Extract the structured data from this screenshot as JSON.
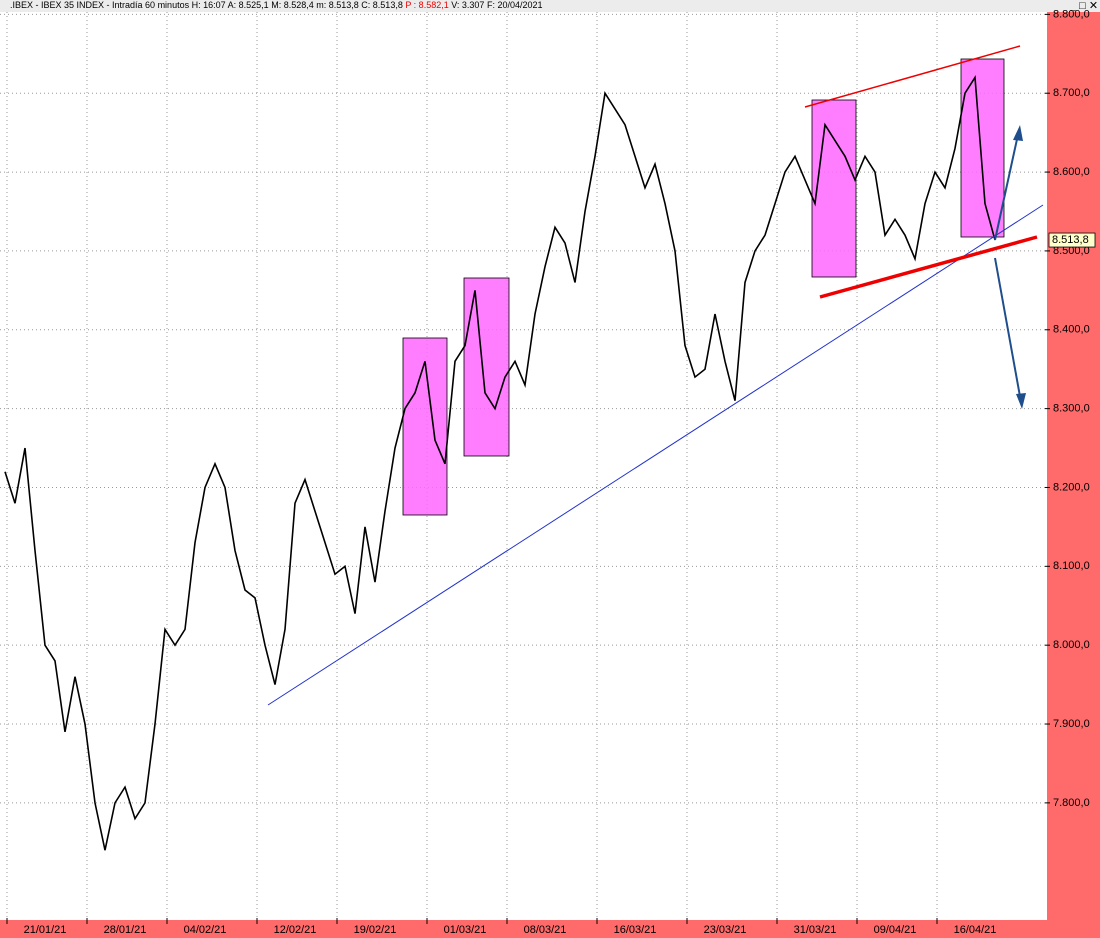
{
  "chart_data": {
    "type": "line",
    "header": {
      "symbol": ".IBEX - IBEX 35 INDEX - Intradía 60 minutos",
      "fields": [
        "H: 16:07",
        "A: 8.525,1",
        "M: 8.528,4",
        "m: 8.513,8",
        "C: 8.513,8"
      ],
      "prev": "P : 8.582,1",
      "tail": [
        "V: 3.307",
        "F: 20/04/2021"
      ]
    },
    "color": "#000000",
    "x": [
      null,
      null,
      null,
      null,
      "21/01/21",
      null,
      null,
      null,
      null,
      null,
      null,
      null,
      "28/01/21",
      null,
      null,
      null,
      null,
      null,
      null,
      null,
      "04/02/21",
      null,
      null,
      null,
      null,
      null,
      null,
      null,
      null,
      "12/02/21",
      null,
      null,
      null,
      null,
      null,
      null,
      null,
      "19/02/21",
      null,
      null,
      null,
      null,
      null,
      null,
      null,
      null,
      "01/03/21",
      null,
      null,
      null,
      null,
      null,
      null,
      null,
      "08/03/21",
      null,
      null,
      null,
      null,
      null,
      null,
      null,
      null,
      "16/03/21",
      null,
      null,
      null,
      null,
      null,
      null,
      null,
      null,
      "23/03/21",
      null,
      null,
      null,
      null,
      null,
      null,
      null,
      null,
      "31/03/21",
      null,
      null,
      null,
      null,
      null,
      null,
      null,
      "09/04/21",
      null,
      null,
      null,
      null,
      null,
      null,
      null,
      "16/04/21",
      null,
      null
    ],
    "values": [
      8220,
      8180,
      8250,
      8120,
      8000,
      7980,
      7890,
      7960,
      7900,
      7800,
      7740,
      7800,
      7820,
      7780,
      7800,
      7900,
      8020,
      8000,
      8020,
      8130,
      8200,
      8230,
      8200,
      8120,
      8070,
      8060,
      8000,
      7950,
      8020,
      8180,
      8210,
      8170,
      8130,
      8090,
      8100,
      8040,
      8150,
      8080,
      8170,
      8250,
      8300,
      8320,
      8360,
      8260,
      8230,
      8360,
      8380,
      8450,
      8320,
      8300,
      8340,
      8360,
      8330,
      8420,
      8480,
      8530,
      8510,
      8460,
      8550,
      8620,
      8700,
      8680,
      8660,
      8620,
      8580,
      8610,
      8560,
      8500,
      8380,
      8340,
      8350,
      8420,
      8360,
      8310,
      8460,
      8500,
      8520,
      8560,
      8600,
      8620,
      8590,
      8560,
      8660,
      8640,
      8620,
      8590,
      8620,
      8600,
      8520,
      8540,
      8520,
      8490,
      8560,
      8600,
      8580,
      8630,
      8700,
      8720,
      8560,
      8513.8
    ],
    "last_price": {
      "value": 8513.8,
      "label": "8.513,8"
    },
    "ylim": [
      7654,
      8803
    ],
    "yticks": [
      {
        "value": 7800,
        "label": "7.800,0"
      },
      {
        "value": 7900,
        "label": "7.900,0"
      },
      {
        "value": 8000,
        "label": "8.000,0"
      },
      {
        "value": 8100,
        "label": "8.100,0"
      },
      {
        "value": 8200,
        "label": "8.200,0"
      },
      {
        "value": 8300,
        "label": "8.300,0"
      },
      {
        "value": 8400,
        "label": "8.400,0"
      },
      {
        "value": 8500,
        "label": "8.500,0"
      },
      {
        "value": 8600,
        "label": "8.600,0"
      },
      {
        "value": 8700,
        "label": "8.700,0"
      },
      {
        "value": 8800,
        "label": "8.800,0"
      }
    ],
    "grid": true
  }
}
